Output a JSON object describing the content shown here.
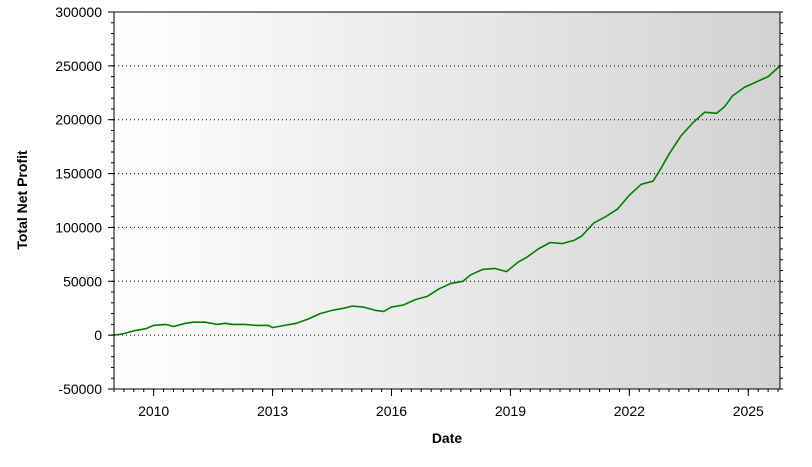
{
  "chart_data": {
    "type": "line",
    "title": "",
    "xlabel": "Date",
    "ylabel": "Total Net Profit",
    "x_ticks": [
      "2010",
      "2013",
      "2016",
      "2019",
      "2022",
      "2025"
    ],
    "y_ticks": [
      "300000",
      "250000",
      "200000",
      "150000",
      "100000",
      "50000",
      "0",
      "-50000"
    ],
    "ylim": [
      -50000,
      300000
    ],
    "xlim": [
      2009.0,
      2025.8
    ],
    "grid": "horizontal dotted",
    "legend": "none",
    "series": [
      {
        "color": "#008000",
        "x": [
          2009.0,
          2009.2,
          2009.5,
          2009.8,
          2010.0,
          2010.3,
          2010.5,
          2010.8,
          2011.0,
          2011.3,
          2011.6,
          2011.8,
          2012.0,
          2012.3,
          2012.6,
          2012.9,
          2013.0,
          2013.3,
          2013.6,
          2013.9,
          2014.2,
          2014.5,
          2014.8,
          2015.0,
          2015.3,
          2015.6,
          2015.8,
          2016.0,
          2016.3,
          2016.6,
          2016.9,
          2017.2,
          2017.5,
          2017.8,
          2018.0,
          2018.3,
          2018.6,
          2018.9,
          2019.2,
          2019.4,
          2019.7,
          2020.0,
          2020.3,
          2020.6,
          2020.8,
          2021.1,
          2021.4,
          2021.7,
          2022.0,
          2022.3,
          2022.6,
          2022.8,
          2023.0,
          2023.3,
          2023.6,
          2023.9,
          2024.2,
          2024.4,
          2024.6,
          2024.9,
          2025.2,
          2025.5,
          2025.8
        ],
        "y": [
          0,
          1000,
          4000,
          6000,
          9000,
          10000,
          8000,
          11000,
          12000,
          12000,
          10000,
          11000,
          10000,
          10000,
          9000,
          9000,
          7000,
          9000,
          11000,
          15000,
          20000,
          23000,
          25000,
          27000,
          26000,
          23000,
          22000,
          26000,
          28000,
          33000,
          36000,
          43000,
          48000,
          50000,
          56000,
          61000,
          62000,
          59000,
          68000,
          72000,
          80000,
          86000,
          85000,
          88000,
          92000,
          104000,
          110000,
          117000,
          130000,
          140000,
          143000,
          155000,
          168000,
          185000,
          197000,
          207000,
          206000,
          212000,
          222000,
          230000,
          235000,
          240000,
          250000
        ]
      }
    ]
  }
}
